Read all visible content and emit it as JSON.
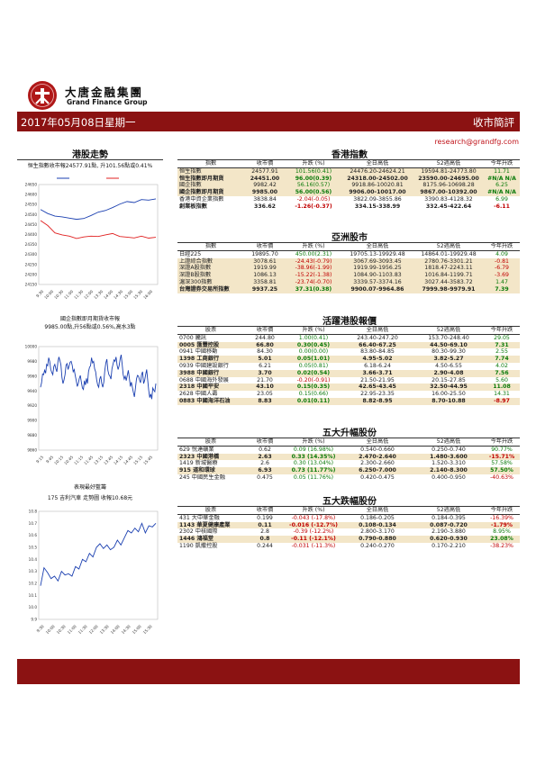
{
  "logo": {
    "cn": "大唐金融集團",
    "en": "Grand Finance Group"
  },
  "banner": {
    "date": "2017年05月08日星期一",
    "title": "收市簡評"
  },
  "email": "research@grandfg.com",
  "left": {
    "hsi_title": "港股走勢",
    "hsi_caption": "恒生指數收市報24577.91點, 升101.56點或0.41%",
    "hsi_ylabels": [
      "24650",
      "24600",
      "24550",
      "24500",
      "24450",
      "24400",
      "24350",
      "24300",
      "24250",
      "24200",
      "24150"
    ],
    "hsi_xlabels": [
      "9:30",
      "10:00",
      "10:30",
      "11:00",
      "11:30",
      "12:00",
      "13:30",
      "14:00",
      "14:30",
      "15:00",
      "15:30",
      "16:00"
    ],
    "fut_caption1": "國企指數即月期貨收市報",
    "fut_caption2": "9985.00點,升56點或0.56%,高水3點",
    "fut_ylabels": [
      "10000",
      "9980",
      "9960",
      "9940",
      "9920",
      "9900",
      "9880",
      "9860"
    ],
    "fut_xlabels": [
      "9:15",
      "9:45",
      "10:15",
      "10:45",
      "11:15",
      "11:45",
      "13:15",
      "13:45",
      "14:15",
      "14:45",
      "15:15",
      "15:45"
    ],
    "stock_caption1": "表現最好藍籌",
    "stock_caption2": "175 吉利汽車 走勢圖 收報10.68元",
    "stock_ylabels": [
      "10.8",
      "10.7",
      "10.6",
      "10.5",
      "10.4",
      "10.3",
      "10.2",
      "10.1",
      "10.0",
      "9.9"
    ],
    "stock_xlabels": [
      "9:30",
      "10:00",
      "10:30",
      "11:00",
      "11:30",
      "12:00",
      "13:30",
      "14:00",
      "14:30",
      "15:00",
      "15:30"
    ]
  },
  "chart_data": [
    {
      "type": "line",
      "title": "恒生指數收市報24577.91點, 升101.56點或0.41%",
      "ylim": [
        24150,
        24650
      ],
      "series": [
        {
          "color": "#1a3fb0",
          "values": [
            24525,
            24505,
            24492,
            24488,
            24482,
            24476,
            24480,
            24495,
            24512,
            24520,
            24535,
            24552,
            24565,
            24560,
            24575,
            24572,
            24578
          ]
        },
        {
          "color": "#e02020",
          "values": [
            24470,
            24445,
            24408,
            24398,
            24392,
            24380,
            24388,
            24392,
            24390,
            24398,
            24405,
            24390,
            24387,
            24383,
            24392,
            24382,
            24386
          ]
        }
      ]
    },
    {
      "type": "line",
      "title": "國企指數即月期貨收市報",
      "ylim": [
        9860,
        10000
      ],
      "series": [
        {
          "color": "#1a3fb0",
          "values": [
            9945,
            9951,
            9963,
            9962,
            9968,
            9964,
            9976,
            9974,
            9985,
            9980,
            9969,
            9965,
            9962,
            9973,
            9976,
            9970,
            9966,
            9979,
            9986,
            9981,
            9975,
            9958,
            9950,
            9955,
            9962,
            9975,
            9977,
            9969,
            9974,
            9979,
            9980,
            9975,
            9966,
            9969,
            9961,
            9954,
            9946,
            9950,
            9957,
            9961,
            9952,
            9944,
            9942,
            9954,
            9948,
            9957,
            9950,
            9966,
            9972,
            9974,
            9985,
            9978,
            9980,
            9970,
            9966,
            9955,
            9948,
            9945,
            9956,
            9960,
            9950,
            9945,
            9952,
            9968,
            9978,
            9983,
            9968,
            9962,
            9960,
            9956,
            9970,
            9976,
            9982,
            9980,
            9986,
            9975,
            9969,
            9974,
            9983,
            9989,
            9976,
            9962,
            9956,
            9960,
            9954,
            9961,
            9968,
            9958,
            9946,
            9952,
            9945,
            9938,
            9932,
            9944,
            9956,
            9961,
            9960,
            9955,
            9951,
            9962,
            9966,
            9950,
            9954,
            9962,
            9969,
            9955,
            9941,
            9931,
            9936,
            9929,
            9944,
            9941,
            9939,
            9950
          ]
        }
      ]
    },
    {
      "type": "line",
      "title": "175 吉利汽車 走勢圖 收報10.68元",
      "ylim": [
        9.9,
        10.8
      ],
      "series": [
        {
          "color": "#1a3fb0",
          "values": [
            10.18,
            10.33,
            10.29,
            10.24,
            10.26,
            10.22,
            10.3,
            10.27,
            10.28,
            10.26,
            10.34,
            10.32,
            10.4,
            10.38,
            10.45,
            10.42,
            10.5,
            10.53,
            10.49,
            10.52,
            10.48,
            10.5,
            10.56,
            10.52,
            10.58,
            10.64,
            10.62,
            10.66,
            10.63,
            10.7,
            10.62,
            10.68,
            10.67,
            10.7
          ]
        }
      ]
    }
  ],
  "hk_index": {
    "title": "香港指數",
    "headers": [
      "指數",
      "收市價",
      "升跌 (%)",
      "全日高低",
      "52週高低",
      "今年升跌"
    ],
    "rows": [
      [
        "恒生指數",
        "24577.91",
        "101.56(0.41)",
        "24476.20-24624.21",
        "19594.81-24773.80",
        "11.71"
      ],
      [
        "恒生指數即月期貨",
        "24451.00",
        "96.00(0.39)",
        "24318.00-24502.00",
        "23590.00-24695.00",
        "#N/A N/A"
      ],
      [
        "國企指數",
        "9982.42",
        "56.16(0.57)",
        "9918.86-10020.81",
        "8175.96-10698.28",
        "6.25"
      ],
      [
        "國企指數即月期貨",
        "9985.00",
        "56.00(0.56)",
        "9906.00-10017.00",
        "9867.00-10392.00",
        "#N/A N/A"
      ],
      [
        "香港中資企業指數",
        "3838.84",
        "-2.04(-0.05)",
        "3822.09-3855.86",
        "3390.83-4128.32",
        "6.99"
      ],
      [
        "創業板指數",
        "336.62",
        "-1.26(-0.37)",
        "334.15-338.99",
        "332.45-422.64",
        "-6.11"
      ]
    ]
  },
  "asia": {
    "title": "亞洲股市",
    "headers": [
      "指數",
      "收市價",
      "升跌 (%)",
      "全日高低",
      "52週高低",
      "今年升跌"
    ],
    "rows": [
      [
        "日經225",
        "19895.70",
        "450.00(2.31)",
        "19705.13-19929.48",
        "14864.01-19929.48",
        "4.09"
      ],
      [
        "上證綜合指數",
        "3078.61",
        "-24.43(-0.79)",
        "3067.69-3093.45",
        "2780.76-3301.21",
        "-0.81"
      ],
      [
        "深證A股指數",
        "1919.99",
        "-38.96(-1.99)",
        "1919.99-1956.25",
        "1818.47-2243.11",
        "-6.79"
      ],
      [
        "深證B股指數",
        "1086.13",
        "-15.22(-1.38)",
        "1084.90-1103.83",
        "1016.84-1199.71",
        "-3.69"
      ],
      [
        "滬深300指數",
        "3358.81",
        "-23.74(-0.70)",
        "3339.57-3374.16",
        "3027.44-3583.72",
        "1.47"
      ],
      [
        "台灣證券交易所指數",
        "9937.25",
        "37.31(0.38)",
        "9900.07-9964.86",
        "7999.98-9979.91",
        "7.39"
      ]
    ]
  },
  "active": {
    "title": "活躍港股報價",
    "headers": [
      "股票",
      "收市價",
      "升跌 (%)",
      "全日高低",
      "52週高低",
      "今年升跌"
    ],
    "rows": [
      [
        "0700 騰訊",
        "244.80",
        "1.00(0.41)",
        "243.40-247.20",
        "153.70-248.40",
        "29.05"
      ],
      [
        "0005 匯豐控股",
        "66.80",
        "0.30(0.45)",
        "66.40-67.25",
        "44.50-69.10",
        "7.31"
      ],
      [
        "0941 中國移動",
        "84.30",
        "0.00(0.00)",
        "83.80-84.85",
        "80.30-99.30",
        "2.55"
      ],
      [
        "1398 工商銀行",
        "5.01",
        "0.05(1.01)",
        "4.95-5.02",
        "3.82-5.27",
        "7.74"
      ],
      [
        "0939 中國建設銀行",
        "6.21",
        "0.05(0.81)",
        "6.18-6.24",
        "4.50-6.55",
        "4.02"
      ],
      [
        "3988 中國銀行",
        "3.70",
        "0.02(0.54)",
        "3.66-3.71",
        "2.90-4.08",
        "7.56"
      ],
      [
        "0688 中國海外發展",
        "21.70",
        "-0.20(-0.91)",
        "21.50-21.95",
        "20.15-27.85",
        "5.60"
      ],
      [
        "2318 中國平安",
        "43.10",
        "0.15(0.35)",
        "42.65-43.45",
        "32.50-44.95",
        "11.08"
      ],
      [
        "2628 中國人壽",
        "23.05",
        "0.15(0.66)",
        "22.95-23.35",
        "16.00-25.50",
        "14.31"
      ],
      [
        "0883 中國海洋石油",
        "8.83",
        "0.01(0.11)",
        "8.82-8.95",
        "8.70-10.88",
        "-8.97"
      ]
    ]
  },
  "gainers": {
    "title": "五大升幅股份",
    "headers": [
      "股票",
      "收市價",
      "升跌 (%)",
      "全日高低",
      "52週高低",
      "今年升跌"
    ],
    "rows": [
      [
        "629 悅達礦業",
        "0.62",
        "0.09 (16.98%)",
        "0.540-0.660",
        "0.250-0.740",
        "90.77%"
      ],
      [
        "2323 中國港橋",
        "2.63",
        "0.33 (14.35%)",
        "2.470-2.640",
        "1.480-3.600",
        "-15.71%"
      ],
      [
        "1419 新城醫療",
        "2.6",
        "0.30 (13.04%)",
        "2.300-2.660",
        "1.520-3.310",
        "57.58%"
      ],
      [
        "915 道和環球",
        "6.93",
        "0.73 (11.77%)",
        "6.250-7.000",
        "2.140-8.300",
        "57.50%"
      ],
      [
        "245 中國民生金融",
        "0.475",
        "0.05 (11.76%)",
        "0.420-0.475",
        "0.400-0.950",
        "-40.63%"
      ]
    ]
  },
  "losers": {
    "title": "五大跌幅股份",
    "headers": [
      "股票",
      "收市價",
      "升跌 (%)",
      "全日高低",
      "52週高低",
      "今年升跌"
    ],
    "rows": [
      [
        "431 大中華金融",
        "0.199",
        "-0.043 (-17.8%)",
        "0.186-0.205",
        "0.184-0.395",
        "-16.39%"
      ],
      [
        "1143 華夏健康產業",
        "0.11",
        "-0.016 (-12.7%)",
        "0.108-0.134",
        "0.087-0.720",
        "-1.79%"
      ],
      [
        "2302 中核國際",
        "2.8",
        "-0.39 (-12.2%)",
        "2.800-3.170",
        "2.190-3.880",
        "8.95%"
      ],
      [
        "1446 鴻福堂",
        "0.8",
        "-0.11 (-12.1%)",
        "0.790-0.880",
        "0.620-0.930",
        "23.08%"
      ],
      [
        "1190 凱撒控股",
        "0.244",
        "-0.031 (-11.3%)",
        "0.240-0.270",
        "0.170-2.210",
        "-38.23%"
      ]
    ]
  }
}
